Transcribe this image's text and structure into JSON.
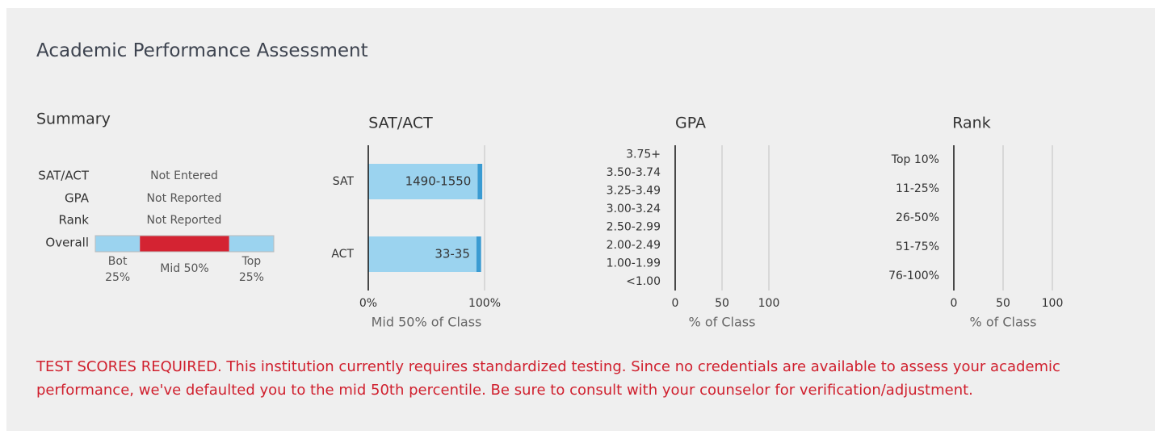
{
  "title": "Academic Performance Assessment",
  "summary": {
    "title": "Summary",
    "rows": [
      {
        "label": "SAT/ACT",
        "value": "Not Entered"
      },
      {
        "label": "GPA",
        "value": "Not Reported"
      },
      {
        "label": "Rank",
        "value": "Not Reported"
      }
    ],
    "overall": {
      "label": "Overall",
      "segments": [
        {
          "label": "Bot 25%",
          "value": 25,
          "color": "#9bd3ef"
        },
        {
          "label": "Mid 50%",
          "value": 50,
          "color": "#d42332"
        },
        {
          "label": "Top 25%",
          "value": 25,
          "color": "#9bd3ef"
        }
      ]
    }
  },
  "chart_data": [
    {
      "type": "bar",
      "horizontal": true,
      "title": "SAT/ACT",
      "categories": [
        "SAT",
        "ACT"
      ],
      "series": [
        {
          "color": "#9bd3ef",
          "values": [
            94,
            93
          ]
        },
        {
          "color": "#3a9bd2",
          "values": [
            4,
            4
          ]
        }
      ],
      "bar_labels": [
        "1490-1550",
        "33-35"
      ],
      "xlim": [
        0,
        100
      ],
      "xticks": [
        {
          "value": 0,
          "label": "0%"
        },
        {
          "value": 100,
          "label": "100%"
        }
      ],
      "xlabel": "Mid 50% of Class",
      "grid": true
    },
    {
      "type": "bar",
      "horizontal": true,
      "title": "GPA",
      "categories": [
        "3.75+",
        "3.50-3.74",
        "3.25-3.49",
        "3.00-3.24",
        "2.50-2.99",
        "2.00-2.49",
        "1.00-1.99",
        "<1.00"
      ],
      "xlim": [
        0,
        100
      ],
      "xticks": [
        0,
        50,
        100
      ],
      "xlabel": "% of Class",
      "grid": true
    },
    {
      "type": "bar",
      "horizontal": true,
      "title": "Rank",
      "categories": [
        "Top 10%",
        "11-25%",
        "26-50%",
        "51-75%",
        "76-100%"
      ],
      "xlim": [
        0,
        100
      ],
      "xticks": [
        0,
        50,
        100
      ],
      "xlabel": "% of Class",
      "grid": true
    }
  ],
  "notice": "TEST SCORES REQUIRED. This institution currently requires standardized testing. Since no credentials are available to assess your academic performance, we've defaulted you to the mid 50th percentile. Be sure to consult with your counselor for verification/adjustment."
}
